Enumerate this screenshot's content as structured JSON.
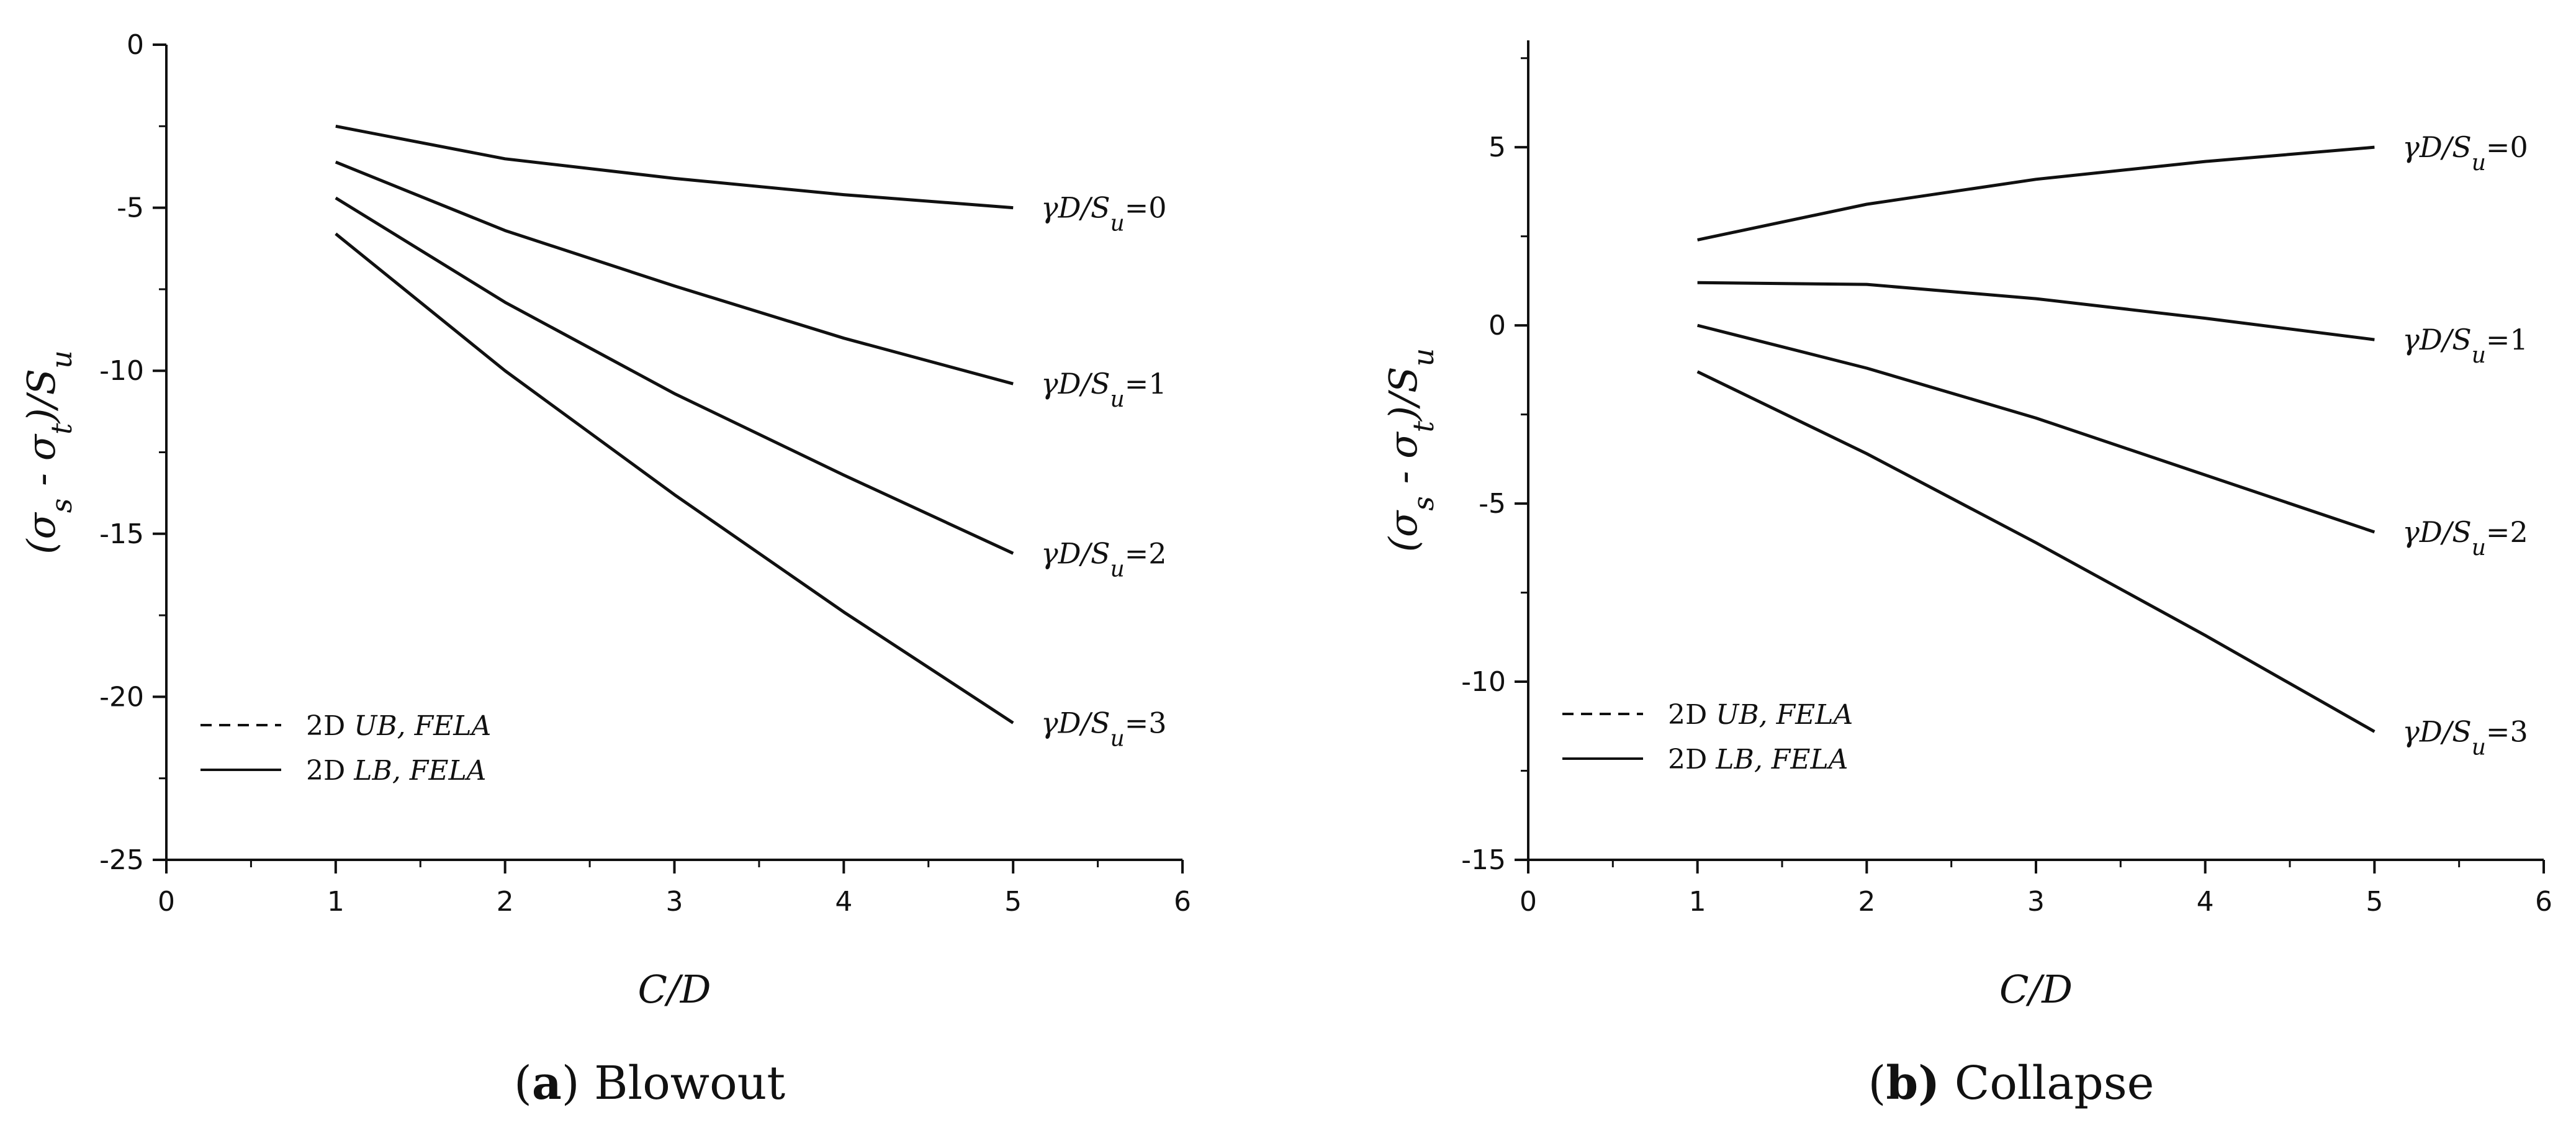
{
  "chart_data": [
    {
      "type": "line",
      "caption_letter": "a",
      "caption_text": "Blowout",
      "xlabel": "C/D",
      "ylabel": "(σs - σt)/Su",
      "xlim": [
        0,
        6
      ],
      "ylim": [
        -25,
        0
      ],
      "xticks": [
        0,
        1,
        2,
        3,
        4,
        5,
        6
      ],
      "yticks": [
        0,
        -5,
        -10,
        -15,
        -20,
        -25
      ],
      "xtick_labels": [
        "0",
        "1",
        "2",
        "3",
        "4",
        "5",
        "6"
      ],
      "ytick_labels": [
        "0",
        "-5",
        "-10",
        "-15",
        "-20",
        "-25"
      ],
      "legend_position": "lower-left",
      "legend": [
        {
          "label_prefix": "2D",
          "label_italic": "UB, FELA",
          "style": "dashed"
        },
        {
          "label_prefix": "2D",
          "label_italic": "LB, FELA",
          "style": "solid"
        }
      ],
      "x": [
        1,
        2,
        3,
        4,
        5
      ],
      "series": [
        {
          "name": "γD/Su=0",
          "values": [
            -2.5,
            -3.5,
            -4.1,
            -4.6,
            -5.0
          ]
        },
        {
          "name": "γD/Su=1",
          "values": [
            -3.6,
            -5.7,
            -7.4,
            -9.0,
            -10.4
          ]
        },
        {
          "name": "γD/Su=2",
          "values": [
            -4.7,
            -7.9,
            -10.7,
            -13.2,
            -15.6
          ]
        },
        {
          "name": "γD/Su=3",
          "values": [
            -5.8,
            -10.0,
            -13.8,
            -17.4,
            -20.8
          ]
        }
      ],
      "annotations": [
        {
          "series": 0,
          "prefix": "γD/S",
          "sub": "u",
          "suffix": "=0"
        },
        {
          "series": 1,
          "prefix": "γD/S",
          "sub": "u",
          "suffix": "=1"
        },
        {
          "series": 2,
          "prefix": "γD/S",
          "sub": "u",
          "suffix": "=2"
        },
        {
          "series": 3,
          "prefix": "γD/S",
          "sub": "u",
          "suffix": "=3"
        }
      ]
    },
    {
      "type": "line",
      "caption_letter": "b)",
      "caption_text": "Collapse",
      "xlabel": "C/D",
      "ylabel": "(σs - σt)/Su",
      "xlim": [
        0,
        6
      ],
      "ylim": [
        -15,
        8
      ],
      "xticks": [
        0,
        1,
        2,
        3,
        4,
        5,
        6
      ],
      "yticks": [
        5,
        0,
        -5,
        -10,
        -15
      ],
      "xtick_labels": [
        "0",
        "1",
        "2",
        "3",
        "4",
        "5",
        "6"
      ],
      "ytick_labels": [
        "5",
        "0",
        "-5",
        "-10",
        "-15"
      ],
      "legend_position": "lower-left",
      "legend": [
        {
          "label_prefix": "2D",
          "label_italic": "UB, FELA",
          "style": "dashed"
        },
        {
          "label_prefix": "2D",
          "label_italic": "LB, FELA",
          "style": "solid"
        }
      ],
      "x": [
        1,
        2,
        3,
        4,
        5
      ],
      "series": [
        {
          "name": "γD/Su=0",
          "values": [
            2.4,
            3.4,
            4.1,
            4.6,
            5.0
          ]
        },
        {
          "name": "γD/Su=1",
          "values": [
            1.2,
            1.15,
            0.75,
            0.2,
            -0.4
          ]
        },
        {
          "name": "γD/Su=2",
          "values": [
            0.0,
            -1.2,
            -2.6,
            -4.2,
            -5.8
          ]
        },
        {
          "name": "γD/Su=3",
          "values": [
            -1.3,
            -3.6,
            -6.1,
            -8.7,
            -11.4
          ]
        }
      ],
      "annotations": [
        {
          "series": 0,
          "prefix": "γD/S",
          "sub": "u",
          "suffix": "=0"
        },
        {
          "series": 1,
          "prefix": "γD/S",
          "sub": "u",
          "suffix": "=1"
        },
        {
          "series": 2,
          "prefix": "γD/S",
          "sub": "u",
          "suffix": "=2"
        },
        {
          "series": 3,
          "prefix": "γD/S",
          "sub": "u",
          "suffix": "=3"
        }
      ]
    }
  ]
}
